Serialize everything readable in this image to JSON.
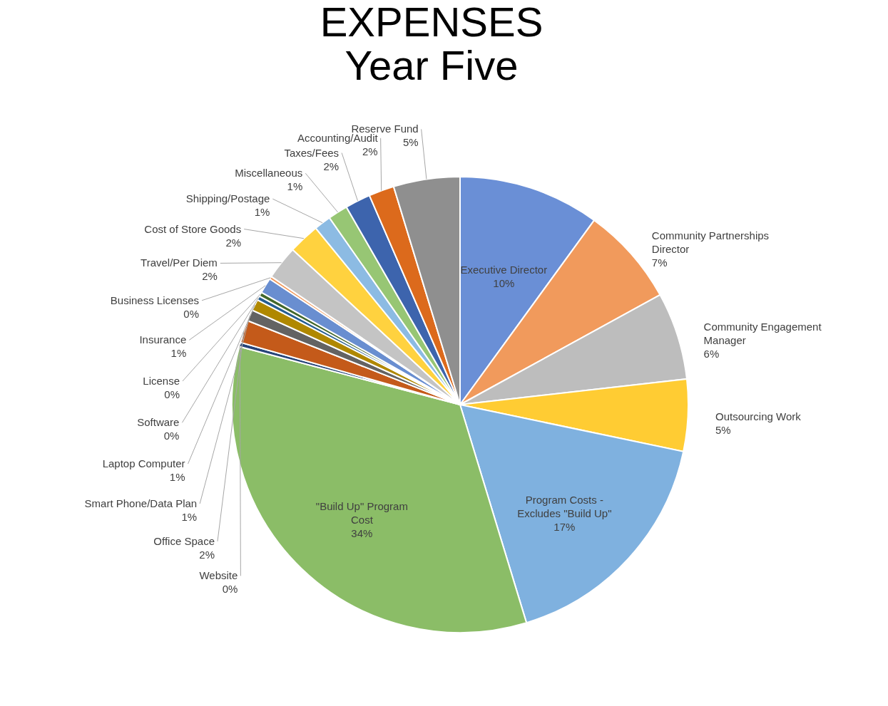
{
  "chart_data": {
    "type": "pie",
    "title": "EXPENSES",
    "subtitle": "Year Five",
    "categories": [
      "Executive Director",
      "Community Partnerships Director",
      "Community Engagement Manager",
      "Outsourcing Work",
      "Program Costs - Excludes \"Build Up\"",
      "\"Build Up\" Program Cost",
      "Website",
      "Office Space",
      "Smart Phone/Data Plan",
      "Laptop Computer",
      "Software",
      "License",
      "Insurance",
      "Business Licenses",
      "Travel/Per Diem",
      "Cost of Store Goods",
      "Shipping/Postage",
      "Miscellaneous",
      "Taxes/Fees",
      "Accounting/Audit",
      "Reserve Fund"
    ],
    "values": [
      10.0,
      7.0,
      6.2,
      5.1,
      17.0,
      33.8,
      0.3,
      1.6,
      0.8,
      0.8,
      0.3,
      0.3,
      1.1,
      0.2,
      2.4,
      2.2,
      1.2,
      1.4,
      1.8,
      1.8,
      4.7
    ],
    "value_labels": [
      "10%",
      "7%",
      "6%",
      "5%",
      "17%",
      "34%",
      "0%",
      "2%",
      "1%",
      "1%",
      "0%",
      "0%",
      "1%",
      "0%",
      "2%",
      "2%",
      "1%",
      "1%",
      "2%",
      "2%",
      "5%"
    ],
    "colors": [
      "#6a8fd6",
      "#f19a5c",
      "#bdbdbd",
      "#ffcc33",
      "#7fb1df",
      "#8bbd67",
      "#264478",
      "#c45a1a",
      "#636363",
      "#b08800",
      "#255e91",
      "#43682b",
      "#698ed0",
      "#f1975a",
      "#c4c4c4",
      "#ffd23f",
      "#8cbbe3",
      "#97c674",
      "#3d64ad",
      "#dc6a1c",
      "#8f8f8f"
    ],
    "legend": false
  }
}
